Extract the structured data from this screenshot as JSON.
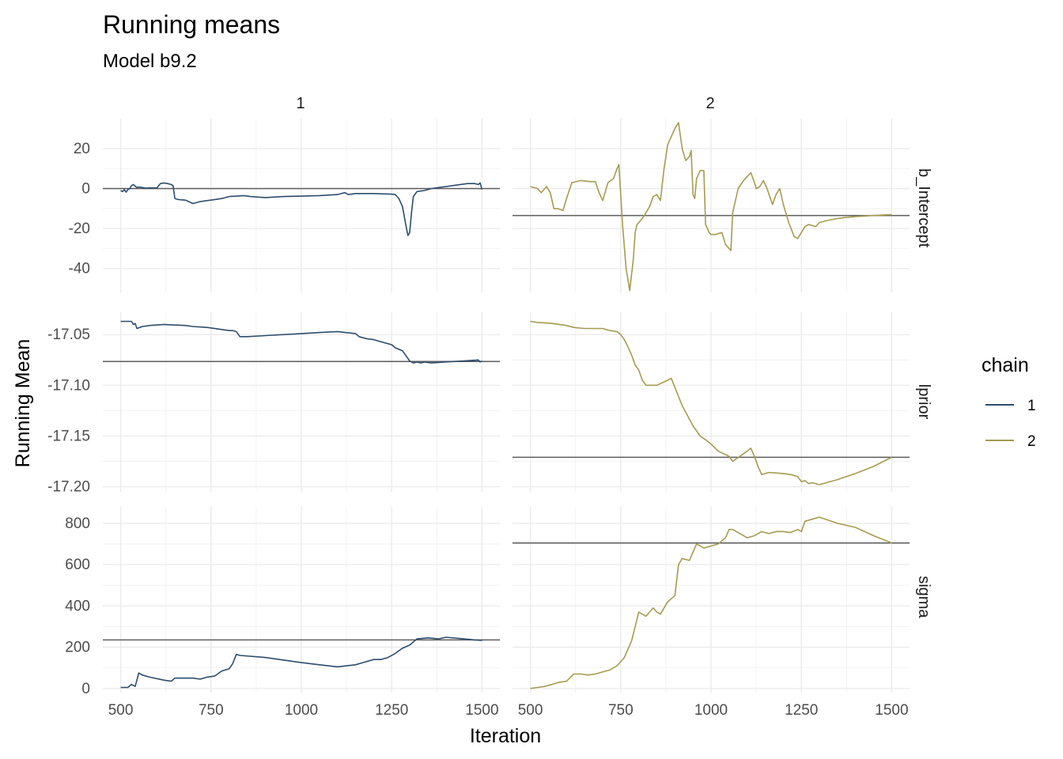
{
  "chart_data": {
    "type": "line",
    "title": "Running means",
    "subtitle": "Model b9.2",
    "xlabel": "Iteration",
    "ylabel": "Running Mean",
    "facet_cols": [
      "1",
      "2"
    ],
    "facet_rows": [
      "b_Intercept",
      "lprior",
      "sigma"
    ],
    "x_ticks": [
      500,
      750,
      1000,
      1250,
      1500
    ],
    "xlim": [
      500,
      1500
    ],
    "grid": true,
    "legend": {
      "title": "chain",
      "position": "right",
      "items": [
        {
          "label": "1",
          "color": "#2c4d6e"
        },
        {
          "label": "2",
          "color": "#a69b52"
        }
      ]
    },
    "colors": {
      "chain1": "#2c4d6e",
      "chain2": "#a69b52",
      "hline": "#5c5c5c"
    },
    "rows": {
      "b_Intercept": {
        "ylim": [
          -52,
          35
        ],
        "y_ticks": [
          20,
          0,
          -20,
          -40
        ],
        "y_tick_labels": [
          "20",
          "0",
          "-20",
          "-40"
        ],
        "chain1": {
          "mean": 0,
          "x": [
            500,
            505,
            510,
            515,
            520,
            525,
            530,
            535,
            540,
            545,
            550,
            560,
            570,
            580,
            600,
            610,
            620,
            630,
            640,
            645,
            650,
            660,
            680,
            700,
            720,
            740,
            760,
            780,
            800,
            820,
            840,
            860,
            900,
            950,
            1000,
            1050,
            1100,
            1120,
            1130,
            1150,
            1200,
            1250,
            1260,
            1270,
            1280,
            1290,
            1295,
            1300,
            1305,
            1310,
            1320,
            1340,
            1360,
            1380,
            1400,
            1420,
            1440,
            1460,
            1480,
            1490,
            1495,
            1500
          ],
          "y": [
            -1,
            -1.5,
            -0.5,
            -1.8,
            -0.5,
            0,
            1.5,
            2,
            1.2,
            0.5,
            0.8,
            0.5,
            0.2,
            0.4,
            0.3,
            2.5,
            2.8,
            2.5,
            2,
            1.5,
            -5,
            -5.5,
            -5.8,
            -7.5,
            -6.5,
            -6,
            -5.5,
            -5,
            -4,
            -3.8,
            -3.5,
            -4,
            -4.5,
            -4,
            -3.8,
            -3.5,
            -3,
            -2,
            -3,
            -2.5,
            -2.5,
            -2.8,
            -3,
            -5,
            -9,
            -19,
            -23.5,
            -22,
            -12,
            -4,
            -1.5,
            -1,
            0,
            0.5,
            1,
            1.5,
            2,
            2.5,
            2.5,
            2,
            2.8,
            -0.5
          ]
        },
        "chain2": {
          "mean": -13.5,
          "x": [
            500,
            520,
            530,
            545,
            555,
            565,
            575,
            590,
            600,
            615,
            640,
            665,
            680,
            690,
            700,
            715,
            730,
            740,
            745,
            755,
            765,
            775,
            785,
            790,
            795,
            800,
            810,
            820,
            830,
            840,
            850,
            860,
            870,
            880,
            900,
            910,
            920,
            930,
            940,
            945,
            950,
            955,
            960,
            970,
            980,
            985,
            995,
            1000,
            1010,
            1030,
            1040,
            1055,
            1060,
            1075,
            1090,
            1110,
            1120,
            1125,
            1135,
            1145,
            1155,
            1170,
            1180,
            1190,
            1200,
            1215,
            1230,
            1240,
            1250,
            1260,
            1270,
            1280,
            1290,
            1300,
            1320,
            1350,
            1370,
            1400,
            1450,
            1500
          ],
          "y": [
            1,
            0,
            -2,
            1,
            -2,
            -10,
            -10,
            -11,
            -5,
            3,
            4,
            3.5,
            3.5,
            -2,
            -6,
            3,
            5,
            10,
            12,
            -18,
            -40,
            -51,
            -35,
            -22,
            -18,
            -17,
            -15,
            -12,
            -9,
            -4,
            -3,
            -6,
            10,
            22,
            30,
            33,
            20,
            14,
            16,
            19,
            -3,
            -5,
            5,
            9,
            9,
            -18,
            -22,
            -23,
            -23,
            -22,
            -28,
            -31,
            -12,
            0,
            4,
            8,
            3,
            0,
            1,
            4,
            0,
            -8,
            -3,
            0,
            -8,
            -17,
            -24,
            -25,
            -22,
            -19,
            -18,
            -18.5,
            -19,
            -17,
            -16,
            -15,
            -14.5,
            -14,
            -13.5,
            -13
          ]
        }
      },
      "lprior": {
        "ylim": [
          -17.205,
          -17.028
        ],
        "y_ticks": [
          -17.05,
          -17.1,
          -17.15,
          -17.2
        ],
        "y_tick_labels": [
          "-17.05",
          "-17.10",
          "-17.15",
          "-17.20"
        ],
        "chain1": {
          "mean": -17.0765,
          "x": [
            500,
            530,
            535,
            540,
            545,
            560,
            580,
            620,
            680,
            700,
            740,
            800,
            810,
            820,
            830,
            850,
            900,
            1000,
            1050,
            1100,
            1150,
            1160,
            1180,
            1200,
            1230,
            1250,
            1260,
            1280,
            1300,
            1310,
            1320,
            1330,
            1340,
            1360,
            1400,
            1450,
            1490,
            1495,
            1500
          ],
          "y": [
            -17.037,
            -17.037,
            -17.04,
            -17.039,
            -17.044,
            -17.042,
            -17.041,
            -17.04,
            -17.041,
            -17.042,
            -17.043,
            -17.046,
            -17.046,
            -17.047,
            -17.052,
            -17.052,
            -17.051,
            -17.049,
            -17.048,
            -17.047,
            -17.049,
            -17.052,
            -17.054,
            -17.055,
            -17.058,
            -17.06,
            -17.063,
            -17.066,
            -17.076,
            -17.078,
            -17.077,
            -17.078,
            -17.077,
            -17.078,
            -17.077,
            -17.076,
            -17.075,
            -17.077,
            -17.076
          ]
        },
        "chain2": {
          "mean": -17.171,
          "x": [
            500,
            520,
            560,
            580,
            600,
            620,
            650,
            700,
            720,
            740,
            750,
            760,
            770,
            780,
            790,
            800,
            810,
            820,
            850,
            880,
            890,
            900,
            920,
            950,
            970,
            990,
            1000,
            1020,
            1050,
            1060,
            1080,
            1100,
            1110,
            1120,
            1130,
            1140,
            1160,
            1200,
            1220,
            1240,
            1250,
            1260,
            1270,
            1280,
            1300,
            1350,
            1400,
            1450,
            1500
          ],
          "y": [
            -17.037,
            -17.038,
            -17.039,
            -17.04,
            -17.041,
            -17.043,
            -17.044,
            -17.044,
            -17.046,
            -17.047,
            -17.05,
            -17.055,
            -17.062,
            -17.07,
            -17.08,
            -17.085,
            -17.095,
            -17.1,
            -17.1,
            -17.095,
            -17.093,
            -17.102,
            -17.12,
            -17.14,
            -17.15,
            -17.155,
            -17.158,
            -17.165,
            -17.17,
            -17.175,
            -17.17,
            -17.165,
            -17.162,
            -17.17,
            -17.18,
            -17.188,
            -17.186,
            -17.187,
            -17.188,
            -17.19,
            -17.195,
            -17.194,
            -17.197,
            -17.196,
            -17.198,
            -17.193,
            -17.187,
            -17.18,
            -17.171
          ]
        }
      },
      "sigma": {
        "ylim": [
          -20,
          880
        ],
        "y_ticks": [
          800,
          600,
          400,
          200,
          0
        ],
        "y_tick_labels": [
          "800",
          "600",
          "400",
          "200",
          "0"
        ],
        "chain1": {
          "mean": 235,
          "x": [
            500,
            520,
            530,
            540,
            545,
            550,
            560,
            580,
            620,
            640,
            650,
            700,
            720,
            740,
            760,
            780,
            800,
            810,
            820,
            830,
            900,
            1000,
            1050,
            1100,
            1150,
            1170,
            1200,
            1220,
            1240,
            1260,
            1280,
            1300,
            1320,
            1350,
            1380,
            1400,
            1450,
            1480,
            1500
          ],
          "y": [
            5,
            5,
            20,
            10,
            40,
            75,
            65,
            55,
            40,
            35,
            50,
            50,
            45,
            55,
            60,
            85,
            95,
            120,
            165,
            160,
            150,
            125,
            115,
            105,
            115,
            125,
            140,
            140,
            150,
            170,
            195,
            210,
            240,
            245,
            240,
            248,
            240,
            235,
            233
          ]
        },
        "chain2": {
          "mean": 705,
          "x": [
            500,
            520,
            540,
            560,
            580,
            600,
            620,
            640,
            660,
            680,
            700,
            720,
            740,
            760,
            770,
            780,
            790,
            800,
            810,
            820,
            840,
            850,
            860,
            880,
            900,
            910,
            920,
            940,
            960,
            970,
            980,
            1000,
            1020,
            1040,
            1050,
            1060,
            1080,
            1100,
            1120,
            1140,
            1160,
            1180,
            1200,
            1220,
            1240,
            1250,
            1260,
            1280,
            1300,
            1350,
            1400,
            1450,
            1500
          ],
          "y": [
            0,
            5,
            10,
            20,
            30,
            35,
            70,
            70,
            65,
            70,
            80,
            90,
            110,
            150,
            190,
            230,
            300,
            370,
            360,
            350,
            390,
            370,
            360,
            420,
            450,
            600,
            630,
            620,
            700,
            690,
            680,
            690,
            700,
            730,
            770,
            770,
            750,
            730,
            740,
            760,
            750,
            760,
            760,
            755,
            770,
            760,
            810,
            820,
            830,
            800,
            780,
            740,
            705
          ]
        }
      }
    }
  }
}
